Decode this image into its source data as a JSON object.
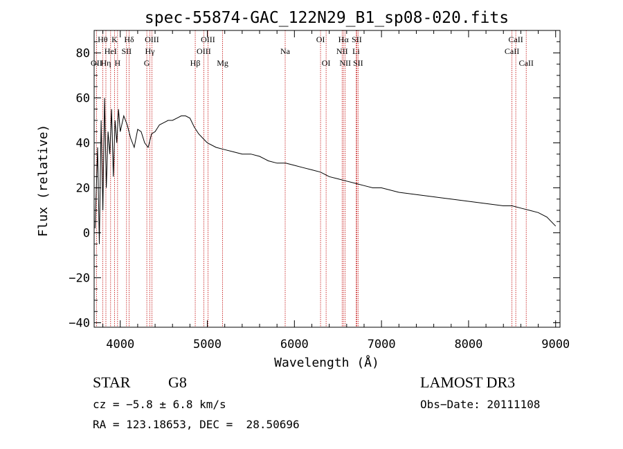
{
  "chart_data": {
    "type": "line",
    "title": "spec-55874-GAC_122N29_B1_sp08-020.fits",
    "xlabel": "Wavelength (Å)",
    "ylabel": "Flux (relative)",
    "xlim": [
      3700,
      9050
    ],
    "ylim": [
      -42,
      90
    ],
    "x_ticks": [
      4000,
      5000,
      6000,
      7000,
      8000,
      9000
    ],
    "x_tick_labels": [
      "4000",
      "5000",
      "6000",
      "7000",
      "8000",
      "9000"
    ],
    "y_ticks": [
      -40,
      -20,
      0,
      20,
      40,
      60,
      80
    ],
    "y_tick_labels": [
      "−40",
      "−20",
      "0",
      "20",
      "40",
      "60",
      "80"
    ],
    "grid": false,
    "series": [
      {
        "name": "spectrum",
        "x": [
          3710,
          3740,
          3760,
          3780,
          3800,
          3820,
          3840,
          3860,
          3880,
          3900,
          3920,
          3940,
          3960,
          3980,
          4000,
          4040,
          4080,
          4120,
          4160,
          4200,
          4240,
          4280,
          4320,
          4360,
          4400,
          4450,
          4500,
          4550,
          4600,
          4650,
          4700,
          4750,
          4800,
          4850,
          4900,
          4950,
          5000,
          5100,
          5200,
          5300,
          5400,
          5500,
          5600,
          5700,
          5800,
          5900,
          6000,
          6100,
          6200,
          6300,
          6400,
          6500,
          6600,
          6700,
          6800,
          6900,
          7000,
          7200,
          7400,
          7600,
          7800,
          8000,
          8200,
          8400,
          8500,
          8600,
          8700,
          8800,
          8900,
          9000
        ],
        "y": [
          2,
          38,
          -5,
          50,
          10,
          60,
          20,
          45,
          35,
          55,
          25,
          50,
          40,
          55,
          45,
          52,
          48,
          42,
          38,
          46,
          45,
          40,
          38,
          44,
          45,
          48,
          49,
          50,
          50,
          51,
          52,
          52,
          51,
          47,
          44,
          42,
          40,
          38,
          37,
          36,
          35,
          35,
          34,
          32,
          31,
          31,
          30,
          29,
          28,
          27,
          25,
          24,
          23,
          22,
          21,
          20,
          20,
          18,
          17,
          16,
          15,
          14,
          13,
          12,
          12,
          11,
          10,
          9,
          7,
          3
        ]
      }
    ],
    "annotations": [
      {
        "label": "Hθ",
        "wavelength": 3798,
        "row": 1
      },
      {
        "label": "Hη",
        "wavelength": 3835,
        "row": 3
      },
      {
        "label": "K",
        "wavelength": 3934,
        "row": 1
      },
      {
        "label": "Hδ",
        "wavelength": 4102,
        "row": 1
      },
      {
        "label": "OIII",
        "wavelength": 4363,
        "row": 1
      },
      {
        "label": "OIII",
        "wavelength": 5007,
        "row": 1
      },
      {
        "label": "OII",
        "wavelength": 3727,
        "row": 3
      },
      {
        "label": "HeI",
        "wavelength": 3889,
        "row": 2
      },
      {
        "label": "SII",
        "wavelength": 4072,
        "row": 2
      },
      {
        "label": "Hγ",
        "wavelength": 4340,
        "row": 2
      },
      {
        "label": "OIII",
        "wavelength": 4959,
        "row": 2
      },
      {
        "label": "H",
        "wavelength": 3969,
        "row": 3
      },
      {
        "label": "G",
        "wavelength": 4305,
        "row": 3
      },
      {
        "label": "Hβ",
        "wavelength": 4861,
        "row": 3
      },
      {
        "label": "Mg",
        "wavelength": 5175,
        "row": 3
      },
      {
        "label": "Na",
        "wavelength": 5894,
        "row": 2
      },
      {
        "label": "OI",
        "wavelength": 6300,
        "row": 1
      },
      {
        "label": "OI",
        "wavelength": 6364,
        "row": 3
      },
      {
        "label": "Hα",
        "wavelength": 6563,
        "row": 1
      },
      {
        "label": "SII",
        "wavelength": 6716,
        "row": 1
      },
      {
        "label": "NII",
        "wavelength": 6548,
        "row": 2
      },
      {
        "label": "Li",
        "wavelength": 6708,
        "row": 2
      },
      {
        "label": "NII",
        "wavelength": 6583,
        "row": 3
      },
      {
        "label": "SII",
        "wavelength": 6731,
        "row": 3
      },
      {
        "label": "CaII",
        "wavelength": 8542,
        "row": 1
      },
      {
        "label": "CaII",
        "wavelength": 8498,
        "row": 2
      },
      {
        "label": "CaII",
        "wavelength": 8662,
        "row": 3
      }
    ]
  },
  "info": {
    "class": "STAR",
    "subclass": "G8",
    "survey": "LAMOST DR3",
    "cz": "cz = −5.8 ± 6.8 km/s",
    "obs_date": "Obs−Date: 20111108",
    "coords": "RA = 123.18653, DEC =  28.50696"
  },
  "colors": {
    "line": "#000000",
    "marker": "#c00000",
    "background": "#ffffff"
  }
}
